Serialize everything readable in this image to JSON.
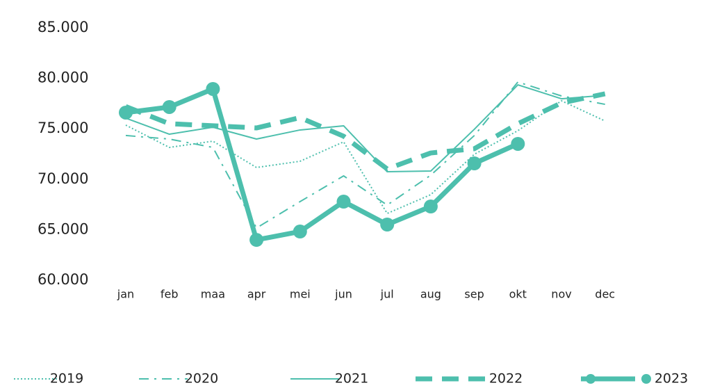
{
  "chart_data": {
    "type": "line",
    "categories": [
      "jan",
      "feb",
      "maa",
      "apr",
      "mei",
      "jun",
      "jul",
      "aug",
      "sep",
      "okt",
      "nov",
      "dec"
    ],
    "ylim": [
      60000,
      85000
    ],
    "yticks": [
      {
        "value": 60000,
        "label": "60.000"
      },
      {
        "value": 65000,
        "label": "65.000"
      },
      {
        "value": 70000,
        "label": "70.000"
      },
      {
        "value": 75000,
        "label": "75.000"
      },
      {
        "value": 80000,
        "label": "80.000"
      },
      {
        "value": 85000,
        "label": "85.000"
      }
    ],
    "series": [
      {
        "name": "2019",
        "color": "#4dbfad",
        "line_style": "dotted",
        "width": 2,
        "values": [
          75360,
          73150,
          73770,
          71160,
          71780,
          73700,
          66610,
          68470,
          72470,
          74810,
          77770,
          75770
        ]
      },
      {
        "name": "2020",
        "color": "#4dbfad",
        "line_style": "dashdot",
        "width": 2,
        "values": [
          74330,
          73980,
          73150,
          65170,
          67780,
          70330,
          67440,
          70400,
          74330,
          79630,
          78250,
          77420
        ]
      },
      {
        "name": "2021",
        "color": "#4dbfad",
        "line_style": "solid",
        "width": 2,
        "values": [
          76050,
          74460,
          75150,
          73980,
          74880,
          75290,
          70740,
          70810,
          74950,
          79350,
          77970,
          78320
        ]
      },
      {
        "name": "2022",
        "color": "#4dbfad",
        "line_style": "dashed",
        "width": 7,
        "values": [
          77200,
          75500,
          75300,
          75080,
          76100,
          74260,
          71020,
          72600,
          73020,
          75500,
          77560,
          78460
        ]
      },
      {
        "name": "2023",
        "color": "#4dbfad",
        "line_style": "solid",
        "width": 7,
        "markers": true,
        "values": [
          76600,
          77150,
          78940,
          63990,
          64820,
          67780,
          65510,
          67300,
          71570,
          73500,
          null,
          null
        ]
      }
    ]
  }
}
